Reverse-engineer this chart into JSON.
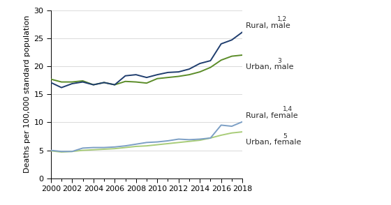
{
  "years": [
    2000,
    2001,
    2002,
    2003,
    2004,
    2005,
    2006,
    2007,
    2008,
    2009,
    2010,
    2011,
    2012,
    2013,
    2014,
    2015,
    2016,
    2017,
    2018
  ],
  "rural_male": [
    17.1,
    16.2,
    16.9,
    17.2,
    16.7,
    17.1,
    16.7,
    18.3,
    18.5,
    18.0,
    18.5,
    18.9,
    19.0,
    19.5,
    20.5,
    21.0,
    24.0,
    24.7,
    26.1
  ],
  "urban_male": [
    17.7,
    17.2,
    17.2,
    17.4,
    16.7,
    17.1,
    16.7,
    17.3,
    17.2,
    17.0,
    17.8,
    18.0,
    18.2,
    18.5,
    19.0,
    19.8,
    21.1,
    21.8,
    22.0
  ],
  "rural_female": [
    5.0,
    4.8,
    4.8,
    5.4,
    5.5,
    5.5,
    5.6,
    5.8,
    6.1,
    6.4,
    6.5,
    6.7,
    7.0,
    6.9,
    7.0,
    7.2,
    9.5,
    9.3,
    10.1
  ],
  "urban_female": [
    4.9,
    4.7,
    4.8,
    5.0,
    5.1,
    5.2,
    5.3,
    5.5,
    5.7,
    5.8,
    6.0,
    6.2,
    6.4,
    6.6,
    6.8,
    7.2,
    7.7,
    8.1,
    8.3
  ],
  "rural_male_color": "#1f3d6e",
  "urban_male_color": "#5b8c28",
  "rural_female_color": "#7c9fc5",
  "urban_female_color": "#a8cc78",
  "ylabel": "Deaths per 100,000 standard population",
  "ylim": [
    0,
    30
  ],
  "yticks": [
    0,
    5,
    10,
    15,
    20,
    25,
    30
  ],
  "xlim": [
    2000,
    2018
  ],
  "xticks_major": [
    2000,
    2002,
    2004,
    2006,
    2008,
    2010,
    2012,
    2014,
    2016,
    2018
  ],
  "xticks_minor": [
    2001,
    2003,
    2005,
    2007,
    2009,
    2011,
    2013,
    2015,
    2017
  ],
  "label_rural_male": "Rural, male",
  "label_rural_male_sup": "1,2",
  "label_urban_male": "Urban, male",
  "label_urban_male_sup": "3",
  "label_rural_female": "Rural, female",
  "label_rural_female_sup": "1,4",
  "label_urban_female": "Urban, female",
  "label_urban_female_sup": "5",
  "line_width": 1.4,
  "background_color": "#ffffff",
  "label_fontsize": 8.0,
  "sup_fontsize": 6.5,
  "tick_fontsize": 8.0,
  "ylabel_fontsize": 8.0
}
